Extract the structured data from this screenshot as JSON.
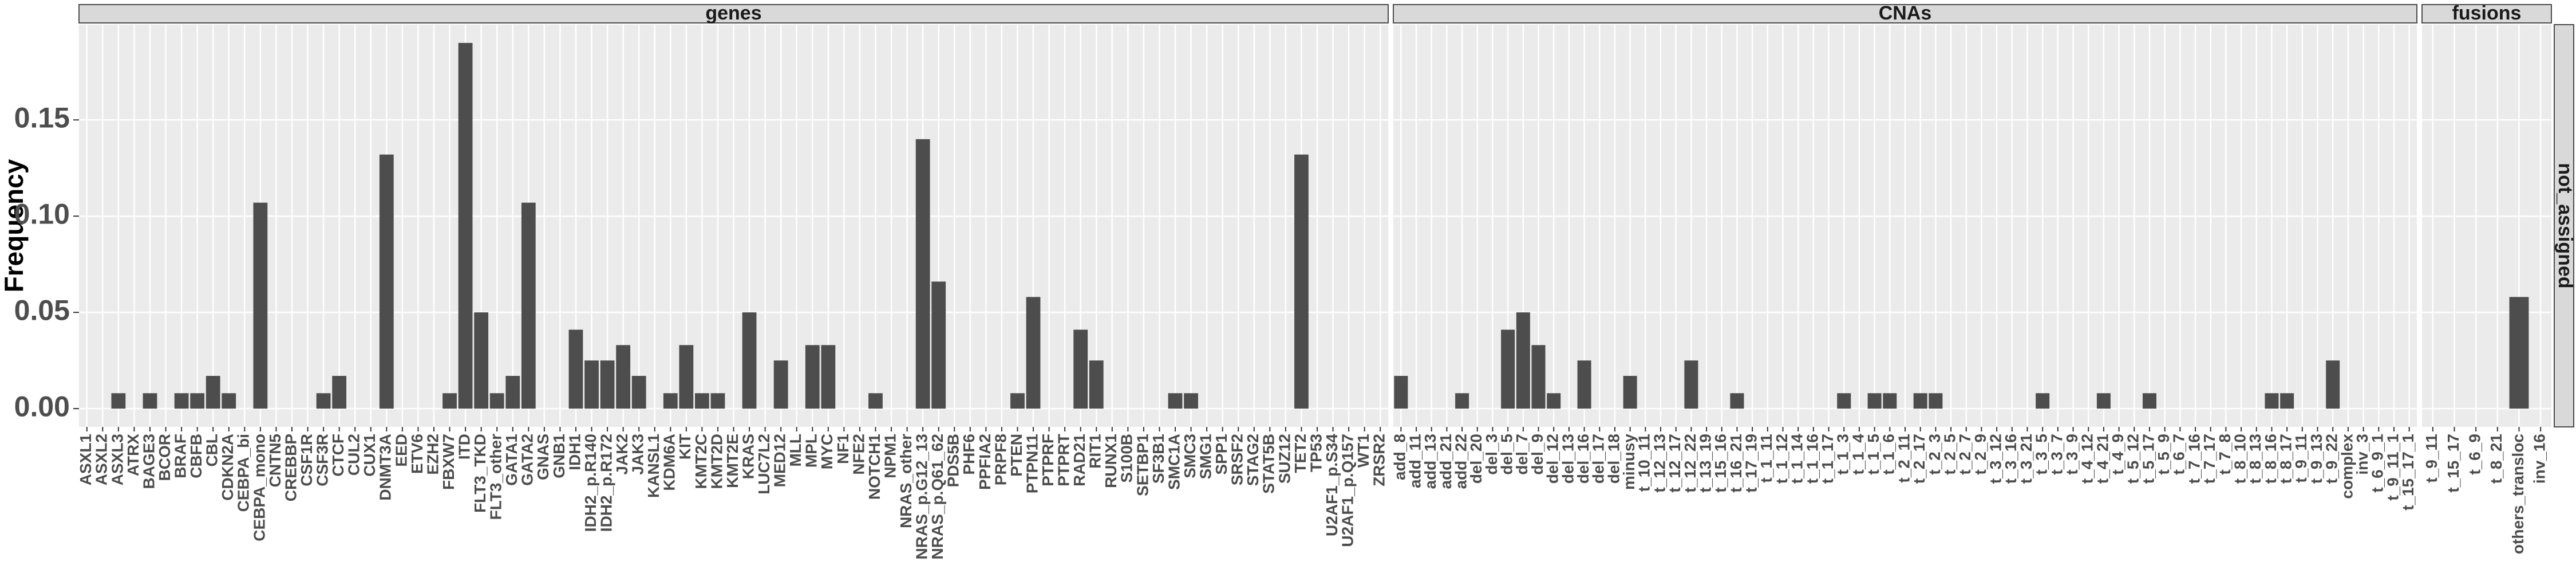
{
  "chart_data": [
    {
      "type": "bar",
      "facet": "genes",
      "y_label": "Frequency",
      "color": "#4d4d4d",
      "grid": true,
      "ylim": [
        -0.0095,
        0.1995
      ],
      "yticks": [
        {
          "value": 0,
          "label": "0.00"
        },
        {
          "value": 0.05,
          "label": "0.05"
        },
        {
          "value": 0.1,
          "label": "0.10"
        },
        {
          "value": 0.15,
          "label": "0.15"
        }
      ],
      "categories": [
        "ASXL1",
        "ASXL2",
        "ASXL3",
        "ATRX",
        "BAGE3",
        "BCOR",
        "BRAF",
        "CBFB",
        "CBL",
        "CDKN2A",
        "CEBPA_bi",
        "CEBPA_mono",
        "CNTN5",
        "CREBBP",
        "CSF1R",
        "CSF3R",
        "CTCF",
        "CUL2",
        "CUX1",
        "DNMT3A",
        "EED",
        "ETV6",
        "EZH2",
        "FBXW7",
        "ITD",
        "FLT3_TKD",
        "FLT3_other",
        "GATA1",
        "GATA2",
        "GNAS",
        "GNB1",
        "IDH1",
        "IDH2_p.R140",
        "IDH2_p.R172",
        "JAK2",
        "JAK3",
        "KANSL1",
        "KDM6A",
        "KIT",
        "KMT2C",
        "KMT2D",
        "KMT2E",
        "KRAS",
        "LUC7L2",
        "MED12",
        "MLL",
        "MPL",
        "MYC",
        "NF1",
        "NFE2",
        "NOTCH1",
        "NPM1",
        "NRAS_other",
        "NRAS_p.G12_13",
        "NRAS_p.Q61_62",
        "PDS5B",
        "PHF6",
        "PPFIA2",
        "PRPF8",
        "PTEN",
        "PTPN11",
        "PTPRF",
        "PTPRT",
        "RAD21",
        "RIT1",
        "RUNX1",
        "S100B",
        "SETBP1",
        "SF3B1",
        "SMC1A",
        "SMC3",
        "SMG1",
        "SPP1",
        "SRSF2",
        "STAG2",
        "STAT5B",
        "SUZ12",
        "TET2",
        "TP53",
        "U2AF1_p.S34",
        "U2AF1_p.Q157",
        "WT1",
        "ZRSR2"
      ],
      "values": [
        0,
        0,
        0.008,
        0,
        0.008,
        0,
        0.008,
        0.008,
        0.017,
        0.008,
        0,
        0.107,
        0,
        0,
        0,
        0.008,
        0.017,
        0,
        0,
        0.132,
        0,
        0,
        0,
        0.008,
        0.19,
        0.05,
        0.008,
        0.017,
        0.107,
        0,
        0,
        0.041,
        0.025,
        0.025,
        0.033,
        0.017,
        0,
        0.008,
        0.033,
        0.008,
        0.008,
        0,
        0.05,
        0,
        0.025,
        0,
        0.033,
        0.033,
        0,
        0,
        0.008,
        0,
        0,
        0.14,
        0.066,
        0,
        0,
        0,
        0,
        0.008,
        0.058,
        0,
        0,
        0.041,
        0.025,
        0,
        0,
        0,
        0,
        0.008,
        0.008,
        0,
        0,
        0,
        0,
        0,
        0,
        0.132,
        0,
        0,
        0,
        0,
        0
      ]
    },
    {
      "type": "bar",
      "facet": "CNAs",
      "color": "#4d4d4d",
      "categories": [
        "add_8",
        "add_11",
        "add_13",
        "add_21",
        "add_22",
        "del_20",
        "del_3",
        "del_5",
        "del_7",
        "del_9",
        "del_12",
        "del_13",
        "del_16",
        "del_17",
        "del_18",
        "minusy",
        "t_10_11",
        "t_12_13",
        "t_12_17",
        "t_12_22",
        "t_13_19",
        "t_15_16",
        "t_16_21",
        "t_17_19",
        "t_1_11",
        "t_1_12",
        "t_1_14",
        "t_1_16",
        "t_1_17",
        "t_1_3",
        "t_1_4",
        "t_1_5",
        "t_1_6",
        "t_2_11",
        "t_2_17",
        "t_2_3",
        "t_2_5",
        "t_2_7",
        "t_2_9",
        "t_3_12",
        "t_3_16",
        "t_3_21",
        "t_3_5",
        "t_3_7",
        "t_3_9",
        "t_4_12",
        "t_4_21",
        "t_4_9",
        "t_5_12",
        "t_5_17",
        "t_5_9",
        "t_6_7",
        "t_7_16",
        "t_7_17",
        "t_7_8",
        "t_8_10",
        "t_8_13",
        "t_8_16",
        "t_8_17",
        "t_9_11",
        "t_9_13",
        "t_9_22",
        "complex",
        "inv_3",
        "t_6_9_1",
        "t_9_11_1",
        "t_15_17_1"
      ],
      "values": [
        0.017,
        0,
        0,
        0,
        0.008,
        0,
        0,
        0.041,
        0.05,
        0.033,
        0.008,
        0,
        0.025,
        0,
        0,
        0.017,
        0,
        0,
        0,
        0.025,
        0,
        0,
        0.008,
        0,
        0,
        0,
        0,
        0,
        0,
        0.008,
        0,
        0.008,
        0.008,
        0,
        0.008,
        0.008,
        0,
        0,
        0,
        0,
        0,
        0,
        0.008,
        0,
        0,
        0,
        0.008,
        0,
        0,
        0.008,
        0,
        0,
        0,
        0,
        0,
        0,
        0,
        0.008,
        0.008,
        0,
        0,
        0.025,
        0,
        0,
        0,
        0,
        0
      ]
    },
    {
      "type": "bar",
      "facet": "fusions",
      "row_strip": "not_assigned",
      "color": "#4d4d4d",
      "categories": [
        "t_9_11",
        "t_15_17",
        "t_6_9",
        "t_8_21",
        "others_transloc",
        "inv_16"
      ],
      "values": [
        0,
        0,
        0,
        0,
        0.058,
        0
      ]
    }
  ]
}
